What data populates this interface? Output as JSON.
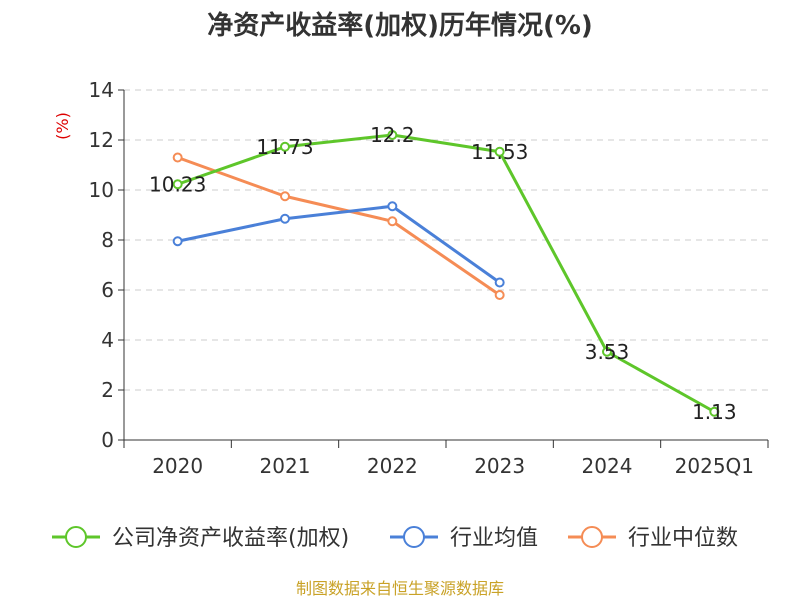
{
  "chart_data": {
    "type": "line",
    "title": "净资产收益率(加权)历年情况(%)",
    "ylabel": "(%)",
    "categories": [
      "2020",
      "2021",
      "2022",
      "2023",
      "2024",
      "2025Q1"
    ],
    "ylim": [
      0,
      14
    ],
    "yticks": [
      0,
      2,
      4,
      6,
      8,
      10,
      12,
      14
    ],
    "grid": true,
    "legend_position": "bottom",
    "series": [
      {
        "name": "公司净资产收益率(加权)",
        "color": "#5ec62a",
        "values": [
          10.23,
          11.73,
          12.2,
          11.53,
          3.53,
          1.13
        ],
        "labels": [
          "10.23",
          "11.73",
          "12.2",
          "11.53",
          "3.53",
          "1.13"
        ]
      },
      {
        "name": "行业均值",
        "color": "#4a80d8",
        "values": [
          7.95,
          8.85,
          9.35,
          6.3,
          null,
          null
        ]
      },
      {
        "name": "行业中位数",
        "color": "#f58c55",
        "values": [
          11.3,
          9.75,
          8.75,
          5.8,
          null,
          null
        ]
      }
    ],
    "source": "制图数据来自恒生聚源数据库",
    "colors": {
      "axis": "#333333",
      "grid": "#cccccc",
      "unit": "#dd0000",
      "source": "#c9a227"
    }
  }
}
